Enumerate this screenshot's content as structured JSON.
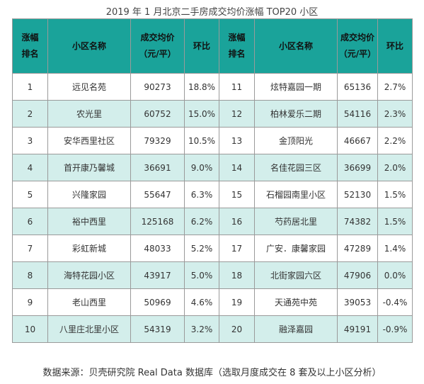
{
  "title": "2019 年 1 月北京二手房成交均价涨幅 TOP20 小区",
  "headers": {
    "rank_line1": "涨幅",
    "rank_line2": "排名",
    "name": "小区名称",
    "price_line1": "成交均价",
    "price_line2": "（元/平）",
    "change": "环比"
  },
  "rows": [
    {
      "l_rank": "1",
      "l_name": "远见名苑",
      "l_price": "90273",
      "l_chg": "18.8%",
      "r_rank": "11",
      "r_name": "炫特嘉园一期",
      "r_price": "65136",
      "r_chg": "2.7%"
    },
    {
      "l_rank": "2",
      "l_name": "农光里",
      "l_price": "60752",
      "l_chg": "15.0%",
      "r_rank": "12",
      "r_name": "柏林爱乐二期",
      "r_price": "54116",
      "r_chg": "2.3%"
    },
    {
      "l_rank": "3",
      "l_name": "安华西里社区",
      "l_price": "79329",
      "l_chg": "10.5%",
      "r_rank": "13",
      "r_name": "金顶阳光",
      "r_price": "46667",
      "r_chg": "2.2%"
    },
    {
      "l_rank": "4",
      "l_name": "首开康乃馨城",
      "l_price": "36691",
      "l_chg": "9.0%",
      "r_rank": "14",
      "r_name": "名佳花园三区",
      "r_price": "36699",
      "r_chg": "2.0%"
    },
    {
      "l_rank": "5",
      "l_name": "兴隆家园",
      "l_price": "55647",
      "l_chg": "6.3%",
      "r_rank": "15",
      "r_name": "石榴园南里小区",
      "r_price": "52130",
      "r_chg": "1.5%"
    },
    {
      "l_rank": "6",
      "l_name": "裕中西里",
      "l_price": "125168",
      "l_chg": "6.2%",
      "r_rank": "16",
      "r_name": "芍药居北里",
      "r_price": "74382",
      "r_chg": "1.5%"
    },
    {
      "l_rank": "7",
      "l_name": "彩虹新城",
      "l_price": "48033",
      "l_chg": "5.2%",
      "r_rank": "17",
      "r_name": "广安．康馨家园",
      "r_price": "47289",
      "r_chg": "1.4%"
    },
    {
      "l_rank": "8",
      "l_name": "海特花园小区",
      "l_price": "43917",
      "l_chg": "5.0%",
      "r_rank": "18",
      "r_name": "北街家园六区",
      "r_price": "47906",
      "r_chg": "0.0%"
    },
    {
      "l_rank": "9",
      "l_name": "老山西里",
      "l_price": "50969",
      "l_chg": "4.6%",
      "r_rank": "19",
      "r_name": "天通苑中苑",
      "r_price": "39053",
      "r_chg": "-0.4%"
    },
    {
      "l_rank": "10",
      "l_name": "八里庄北里小区",
      "l_price": "54319",
      "l_chg": "3.2%",
      "r_rank": "20",
      "r_name": "融泽嘉园",
      "r_price": "49191",
      "r_chg": "-0.9%"
    }
  ],
  "footer": "数据来源：贝壳研究院 Real Data 数据库（选取月度成交在 8 套及以上小区分析）",
  "colors": {
    "header_bg": "#1aa39a",
    "stripe_bg": "#d3eeeb"
  }
}
